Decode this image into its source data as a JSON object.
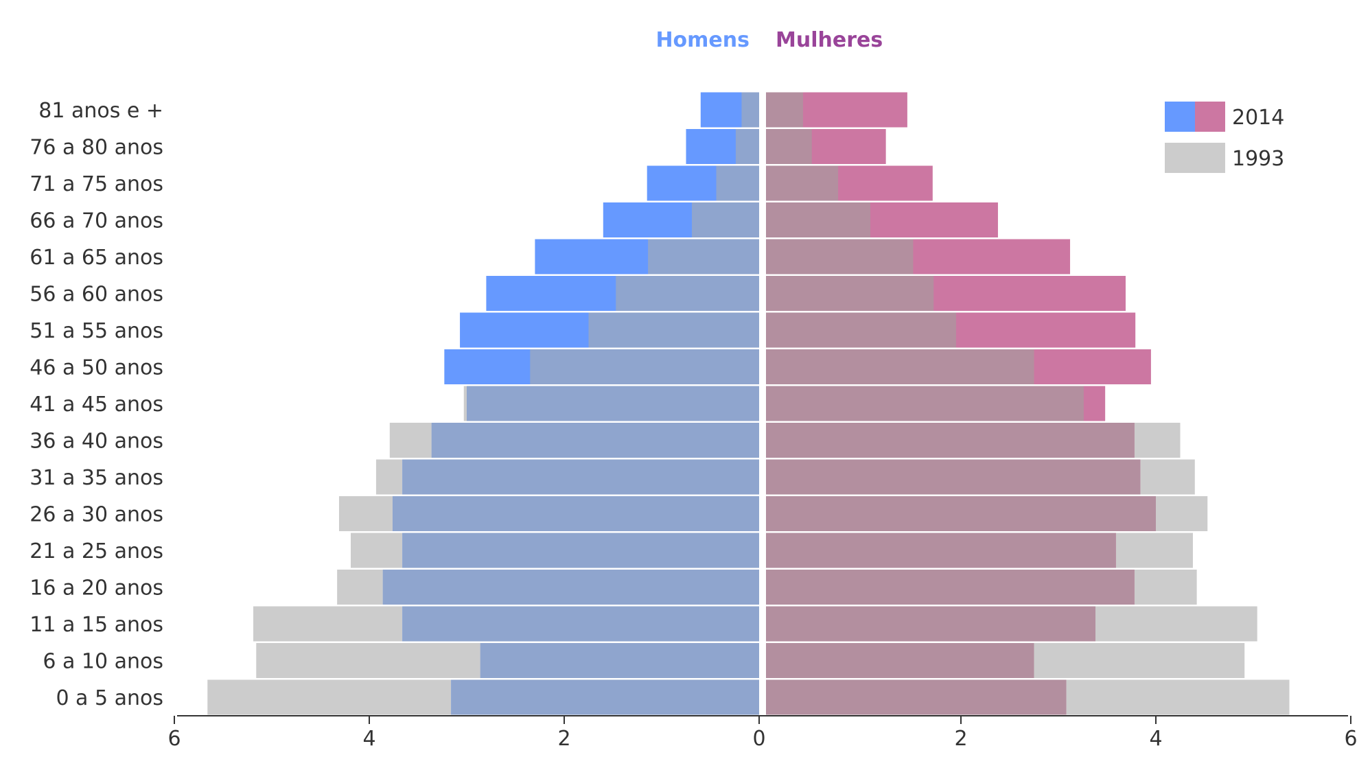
{
  "headers": {
    "men": "Homens",
    "women": "Mulheres"
  },
  "colors": {
    "men_2014": "#6699ff",
    "women_2014": "#cc77a2",
    "year_1993": "#cccccc",
    "men_overlap": "#8fa5ce",
    "women_overlap": "#b38f9f",
    "men_header": "#6699ff",
    "women_header": "#994499",
    "axis": "#333333"
  },
  "legend": [
    {
      "label": "2014",
      "colors": [
        "#6699ff",
        "#cc77a2"
      ]
    },
    {
      "label": "1993",
      "colors": [
        "#cccccc"
      ]
    }
  ],
  "chart_data": {
    "type": "bar",
    "orientation": "horizontal-pyramid",
    "categories": [
      "81 anos e +",
      "76 a 80 anos",
      "71 a 75 anos",
      "66 a 70 anos",
      "61 a 65 anos",
      "56 a 60 anos",
      "51 a 55 anos",
      "46 a 50 anos",
      "41 a 45 anos",
      "36 a 40 anos",
      "31 a 35 anos",
      "26 a 30 anos",
      "21 a 25 anos",
      "16 a 20 anos",
      "11 a 15 anos",
      "6 a 10 anos",
      "0 a 5 anos"
    ],
    "series": [
      {
        "name": "Homens 2014",
        "side": "left",
        "year": "2014",
        "values": [
          0.6,
          0.75,
          1.15,
          1.6,
          2.3,
          2.8,
          3.07,
          3.23,
          3.0,
          3.36,
          3.66,
          3.76,
          3.66,
          3.86,
          3.66,
          2.86,
          3.16
        ]
      },
      {
        "name": "Homens 1993",
        "side": "left",
        "year": "1993",
        "values": [
          0.18,
          0.24,
          0.44,
          0.69,
          1.14,
          1.47,
          1.75,
          2.35,
          3.03,
          3.79,
          3.93,
          4.31,
          4.19,
          4.33,
          5.19,
          5.16,
          5.66
        ]
      },
      {
        "name": "Mulheres 2014",
        "side": "right",
        "year": "2014",
        "values": [
          1.45,
          1.23,
          1.71,
          2.38,
          3.12,
          3.69,
          3.79,
          3.95,
          3.48,
          3.78,
          3.84,
          4.0,
          3.59,
          3.78,
          3.38,
          2.75,
          3.08
        ]
      },
      {
        "name": "Mulheres 1993",
        "side": "right",
        "year": "1993",
        "values": [
          0.38,
          0.47,
          0.74,
          1.07,
          1.51,
          1.72,
          1.95,
          2.75,
          3.26,
          4.25,
          4.4,
          4.53,
          4.38,
          4.42,
          5.04,
          4.91,
          5.37
        ]
      }
    ],
    "xlim": [
      -6,
      6
    ],
    "xticks": [
      6,
      4,
      2,
      0,
      2,
      4,
      6
    ],
    "legend_position": "top-right"
  }
}
